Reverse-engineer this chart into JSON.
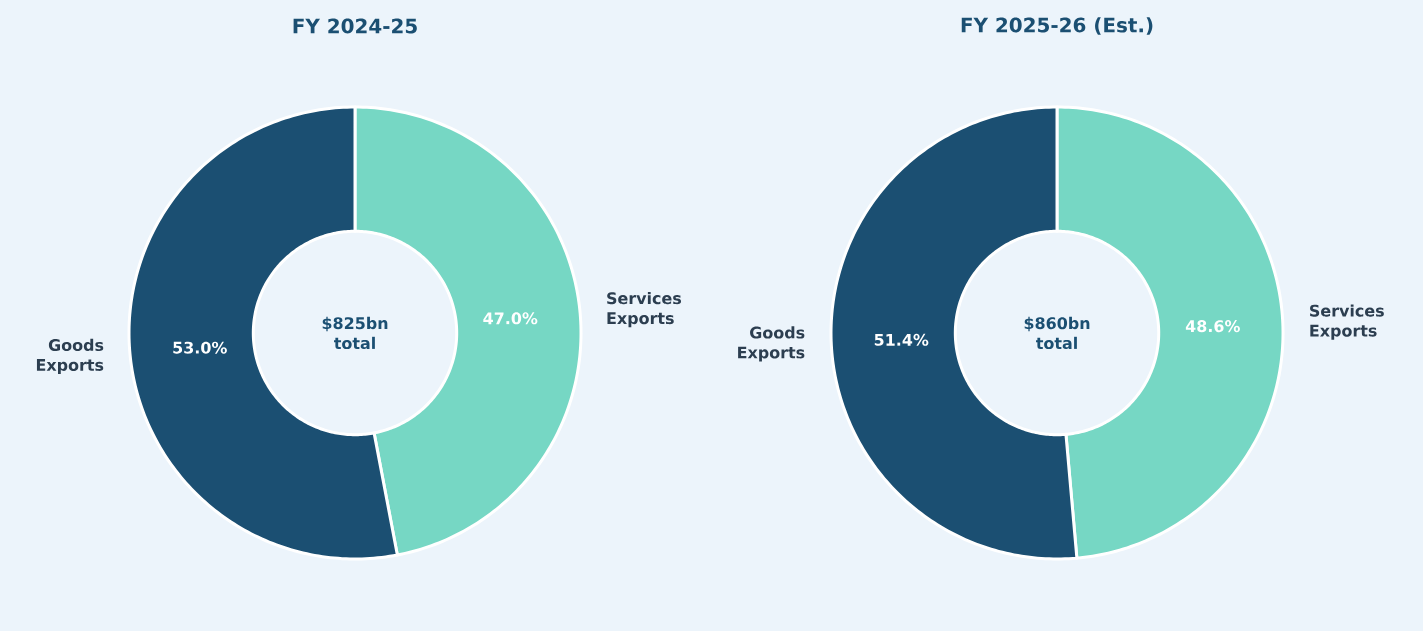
{
  "chart_data": [
    {
      "type": "donut",
      "title": "FY 2024-25",
      "categories": [
        "Services Exports",
        "Goods Exports"
      ],
      "values": [
        47.0,
        53.0
      ],
      "colors": [
        "#76d7c4",
        "#1b4f72"
      ],
      "value_labels": [
        "47.0%",
        "53.0%"
      ],
      "annotations": [
        "$825bn total"
      ]
    },
    {
      "type": "donut",
      "title": "FY 2025-26 (Est.)",
      "categories": [
        "Services Exports",
        "Goods Exports"
      ],
      "values": [
        48.6,
        51.4
      ],
      "colors": [
        "#76d7c4",
        "#1b4f72"
      ],
      "value_labels": [
        "48.6%",
        "51.4%"
      ],
      "annotations": [
        "$860bn total"
      ]
    }
  ]
}
